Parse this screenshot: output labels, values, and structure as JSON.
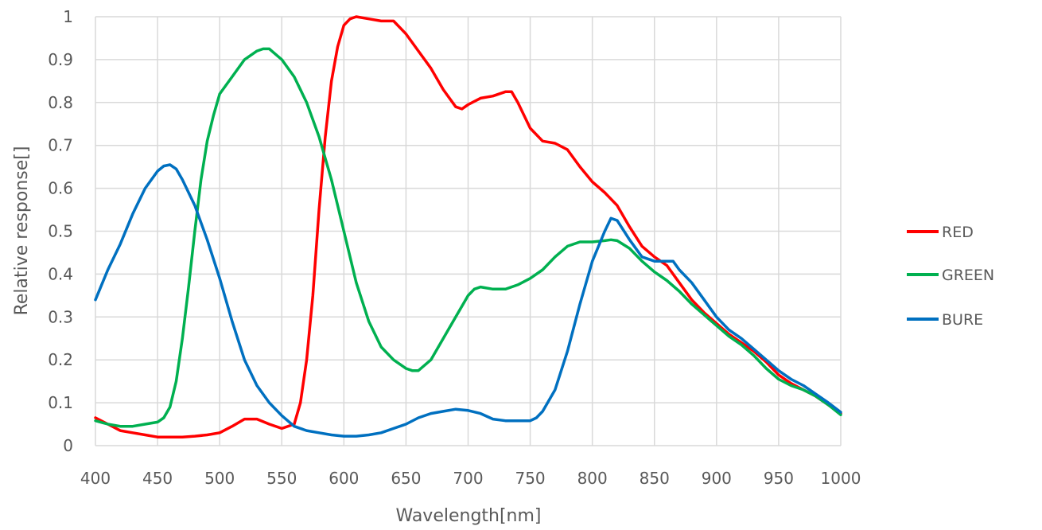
{
  "chart_data": {
    "type": "line",
    "title": "",
    "xlabel": "Wavelength[nm]",
    "ylabel": "Relative response[]",
    "xlim": [
      400,
      1000
    ],
    "ylim": [
      0,
      1
    ],
    "x_ticks": [
      "400",
      "450",
      "500",
      "550",
      "600",
      "650",
      "700",
      "750",
      "800",
      "850",
      "900",
      "950",
      "1000"
    ],
    "y_ticks": [
      "0",
      "0.1",
      "0.2",
      "0.3",
      "0.4",
      "0.5",
      "0.6",
      "0.7",
      "0.8",
      "0.9",
      "1"
    ],
    "grid": true,
    "legend_position": "right",
    "series": [
      {
        "name": "RED",
        "color": "#ff0000",
        "points": [
          [
            400,
            0.065
          ],
          [
            410,
            0.05
          ],
          [
            420,
            0.035
          ],
          [
            430,
            0.03
          ],
          [
            440,
            0.025
          ],
          [
            450,
            0.02
          ],
          [
            460,
            0.02
          ],
          [
            470,
            0.02
          ],
          [
            480,
            0.022
          ],
          [
            490,
            0.025
          ],
          [
            500,
            0.03
          ],
          [
            510,
            0.045
          ],
          [
            520,
            0.062
          ],
          [
            530,
            0.062
          ],
          [
            540,
            0.05
          ],
          [
            550,
            0.04
          ],
          [
            560,
            0.05
          ],
          [
            565,
            0.1
          ],
          [
            570,
            0.2
          ],
          [
            575,
            0.35
          ],
          [
            580,
            0.55
          ],
          [
            585,
            0.72
          ],
          [
            590,
            0.85
          ],
          [
            595,
            0.93
          ],
          [
            600,
            0.98
          ],
          [
            605,
            0.995
          ],
          [
            610,
            1.0
          ],
          [
            620,
            0.995
          ],
          [
            630,
            0.99
          ],
          [
            640,
            0.99
          ],
          [
            650,
            0.96
          ],
          [
            660,
            0.92
          ],
          [
            670,
            0.88
          ],
          [
            680,
            0.83
          ],
          [
            690,
            0.79
          ],
          [
            695,
            0.785
          ],
          [
            700,
            0.795
          ],
          [
            710,
            0.81
          ],
          [
            720,
            0.815
          ],
          [
            730,
            0.825
          ],
          [
            735,
            0.825
          ],
          [
            740,
            0.8
          ],
          [
            750,
            0.74
          ],
          [
            760,
            0.71
          ],
          [
            770,
            0.705
          ],
          [
            780,
            0.69
          ],
          [
            790,
            0.65
          ],
          [
            800,
            0.615
          ],
          [
            810,
            0.59
          ],
          [
            820,
            0.56
          ],
          [
            830,
            0.51
          ],
          [
            840,
            0.465
          ],
          [
            850,
            0.44
          ],
          [
            860,
            0.42
          ],
          [
            870,
            0.38
          ],
          [
            880,
            0.34
          ],
          [
            890,
            0.31
          ],
          [
            900,
            0.285
          ],
          [
            910,
            0.26
          ],
          [
            920,
            0.24
          ],
          [
            930,
            0.22
          ],
          [
            940,
            0.195
          ],
          [
            950,
            0.165
          ],
          [
            960,
            0.145
          ],
          [
            970,
            0.13
          ],
          [
            980,
            0.115
          ],
          [
            990,
            0.095
          ],
          [
            1000,
            0.075
          ]
        ]
      },
      {
        "name": "GREEN",
        "color": "#00b050",
        "points": [
          [
            400,
            0.058
          ],
          [
            410,
            0.05
          ],
          [
            420,
            0.045
          ],
          [
            430,
            0.045
          ],
          [
            440,
            0.05
          ],
          [
            450,
            0.055
          ],
          [
            455,
            0.065
          ],
          [
            460,
            0.09
          ],
          [
            465,
            0.15
          ],
          [
            470,
            0.25
          ],
          [
            475,
            0.37
          ],
          [
            480,
            0.5
          ],
          [
            485,
            0.62
          ],
          [
            490,
            0.71
          ],
          [
            495,
            0.77
          ],
          [
            500,
            0.82
          ],
          [
            510,
            0.86
          ],
          [
            520,
            0.9
          ],
          [
            530,
            0.92
          ],
          [
            535,
            0.925
          ],
          [
            540,
            0.925
          ],
          [
            550,
            0.9
          ],
          [
            560,
            0.86
          ],
          [
            570,
            0.8
          ],
          [
            580,
            0.72
          ],
          [
            590,
            0.62
          ],
          [
            600,
            0.5
          ],
          [
            610,
            0.38
          ],
          [
            620,
            0.29
          ],
          [
            630,
            0.23
          ],
          [
            640,
            0.2
          ],
          [
            650,
            0.18
          ],
          [
            655,
            0.175
          ],
          [
            660,
            0.175
          ],
          [
            670,
            0.2
          ],
          [
            680,
            0.25
          ],
          [
            690,
            0.3
          ],
          [
            700,
            0.35
          ],
          [
            705,
            0.365
          ],
          [
            710,
            0.37
          ],
          [
            720,
            0.365
          ],
          [
            730,
            0.365
          ],
          [
            740,
            0.375
          ],
          [
            750,
            0.39
          ],
          [
            760,
            0.41
          ],
          [
            770,
            0.44
          ],
          [
            780,
            0.465
          ],
          [
            790,
            0.475
          ],
          [
            800,
            0.475
          ],
          [
            810,
            0.478
          ],
          [
            815,
            0.48
          ],
          [
            820,
            0.478
          ],
          [
            830,
            0.46
          ],
          [
            840,
            0.43
          ],
          [
            850,
            0.405
          ],
          [
            860,
            0.385
          ],
          [
            870,
            0.36
          ],
          [
            880,
            0.33
          ],
          [
            890,
            0.305
          ],
          [
            900,
            0.28
          ],
          [
            910,
            0.255
          ],
          [
            920,
            0.235
          ],
          [
            930,
            0.21
          ],
          [
            940,
            0.18
          ],
          [
            950,
            0.155
          ],
          [
            960,
            0.14
          ],
          [
            970,
            0.13
          ],
          [
            980,
            0.115
          ],
          [
            990,
            0.095
          ],
          [
            1000,
            0.072
          ]
        ]
      },
      {
        "name": "BURE",
        "color": "#0070c0",
        "points": [
          [
            400,
            0.34
          ],
          [
            410,
            0.41
          ],
          [
            420,
            0.47
          ],
          [
            430,
            0.54
          ],
          [
            440,
            0.6
          ],
          [
            450,
            0.64
          ],
          [
            455,
            0.652
          ],
          [
            460,
            0.655
          ],
          [
            465,
            0.645
          ],
          [
            470,
            0.62
          ],
          [
            480,
            0.56
          ],
          [
            490,
            0.48
          ],
          [
            500,
            0.39
          ],
          [
            510,
            0.29
          ],
          [
            520,
            0.2
          ],
          [
            530,
            0.14
          ],
          [
            540,
            0.1
          ],
          [
            550,
            0.07
          ],
          [
            560,
            0.045
          ],
          [
            570,
            0.035
          ],
          [
            580,
            0.03
          ],
          [
            590,
            0.025
          ],
          [
            600,
            0.022
          ],
          [
            610,
            0.022
          ],
          [
            620,
            0.025
          ],
          [
            630,
            0.03
          ],
          [
            640,
            0.04
          ],
          [
            650,
            0.05
          ],
          [
            660,
            0.065
          ],
          [
            670,
            0.075
          ],
          [
            680,
            0.08
          ],
          [
            690,
            0.085
          ],
          [
            700,
            0.082
          ],
          [
            710,
            0.075
          ],
          [
            720,
            0.062
          ],
          [
            730,
            0.058
          ],
          [
            740,
            0.058
          ],
          [
            750,
            0.058
          ],
          [
            755,
            0.065
          ],
          [
            760,
            0.08
          ],
          [
            770,
            0.13
          ],
          [
            780,
            0.22
          ],
          [
            790,
            0.33
          ],
          [
            800,
            0.43
          ],
          [
            810,
            0.5
          ],
          [
            815,
            0.53
          ],
          [
            820,
            0.525
          ],
          [
            830,
            0.48
          ],
          [
            840,
            0.44
          ],
          [
            850,
            0.43
          ],
          [
            860,
            0.43
          ],
          [
            865,
            0.43
          ],
          [
            870,
            0.41
          ],
          [
            880,
            0.38
          ],
          [
            890,
            0.34
          ],
          [
            900,
            0.3
          ],
          [
            910,
            0.27
          ],
          [
            920,
            0.25
          ],
          [
            930,
            0.225
          ],
          [
            940,
            0.2
          ],
          [
            950,
            0.175
          ],
          [
            960,
            0.155
          ],
          [
            970,
            0.14
          ],
          [
            980,
            0.12
          ],
          [
            990,
            0.1
          ],
          [
            1000,
            0.078
          ]
        ]
      }
    ]
  }
}
